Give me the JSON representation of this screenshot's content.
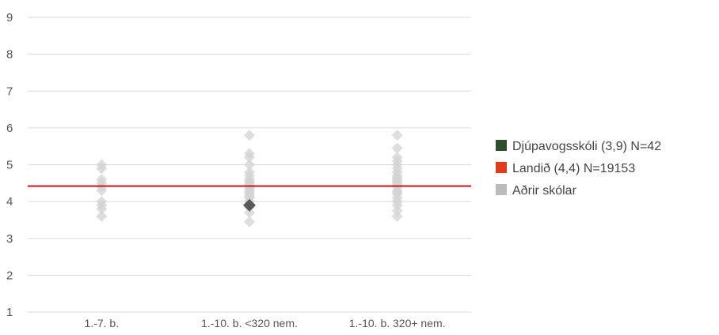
{
  "chart_data": {
    "type": "scatter",
    "categories": [
      "1.-7. b.",
      "1.-10. b. <320 nem.",
      "1.-10. b. 320+ nem."
    ],
    "y_ticks": [
      "1",
      "2",
      "3",
      "4",
      "5",
      "6",
      "7",
      "8",
      "9"
    ],
    "ylim": [
      1,
      9
    ],
    "grid": true,
    "legend_position": "right",
    "series": [
      {
        "name": "Aðrir skólar",
        "color": "#d3d3d3",
        "marker": "diamond",
        "points": [
          {
            "category": 0,
            "values": [
              3.6,
              3.8,
              3.9,
              4.0,
              4.3,
              4.4,
              4.5,
              4.6,
              4.9,
              5.0
            ]
          },
          {
            "category": 1,
            "values": [
              3.45,
              3.7,
              3.85,
              4.0,
              4.1,
              4.15,
              4.2,
              4.25,
              4.3,
              4.35,
              4.4,
              4.45,
              4.5,
              4.55,
              4.6,
              4.7,
              4.8,
              5.0,
              5.2,
              5.3,
              5.8
            ]
          },
          {
            "category": 2,
            "values": [
              3.6,
              3.75,
              3.9,
              4.0,
              4.1,
              4.2,
              4.25,
              4.3,
              4.4,
              4.45,
              4.5,
              4.55,
              4.6,
              4.65,
              4.7,
              4.8,
              4.9,
              5.0,
              5.1,
              5.2,
              5.45,
              5.8
            ]
          }
        ]
      },
      {
        "name": "Djúpavogsskóli (3,9) N=42",
        "legend_color": "#2e4f2e",
        "color": "#595959",
        "marker": "diamond",
        "points": [
          {
            "category": 1,
            "value": 3.9
          }
        ]
      },
      {
        "name": "Landið (4,4) N=19153",
        "legend_color": "#e03c1c",
        "color": "#c01818",
        "marker": "hline",
        "value": 4.42
      }
    ],
    "legend": [
      {
        "label": "Djúpavogsskóli (3,9) N=42",
        "color": "#2e4f2e"
      },
      {
        "label": "Landið (4,4) N=19153",
        "color": "#e03c1c"
      },
      {
        "label": "Aðrir skólar",
        "color": "#bbbbbb"
      }
    ]
  }
}
